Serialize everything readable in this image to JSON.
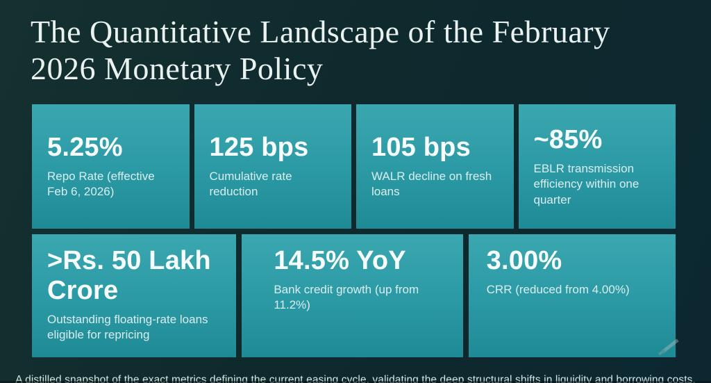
{
  "title": "The Quantitative Landscape of the February 2026 Monetary Policy",
  "rows": [
    {
      "cards": [
        {
          "value": "5.25%",
          "label": "Repo Rate (effective Feb 6, 2026)"
        },
        {
          "value": "125 bps",
          "label": "Cumulative rate reduction"
        },
        {
          "value": "105 bps",
          "label": "WALR decline on fresh loans"
        },
        {
          "value": "~85%",
          "label": "EBLR transmission efficiency within one quarter"
        }
      ]
    },
    {
      "cards": [
        {
          "value": ">Rs. 50 Lakh Crore",
          "label": "Outstanding floating-rate loans eligible for repricing"
        },
        {
          "value": "14.5% YoY",
          "label": "Bank credit growth (up from 11.2%)"
        },
        {
          "value": "3.00%",
          "label": "CRR (reduced from 4.00%)"
        }
      ]
    }
  ],
  "caption": "A distilled snapshot of the exact metrics defining the current easing cycle, validating the deep structural shifts in liquidity and borrowing costs.",
  "icons": {
    "watermark": "pencil-scribble"
  },
  "colors": {
    "background": "#0f2a2e",
    "card_gradient_top": "#3aa7b0",
    "card_gradient_bottom": "#1e8a95",
    "title_text": "#eaf2f0",
    "value_text": "#f7fdfd",
    "label_text": "#d9eef0",
    "caption_text": "#d3e5e5"
  }
}
